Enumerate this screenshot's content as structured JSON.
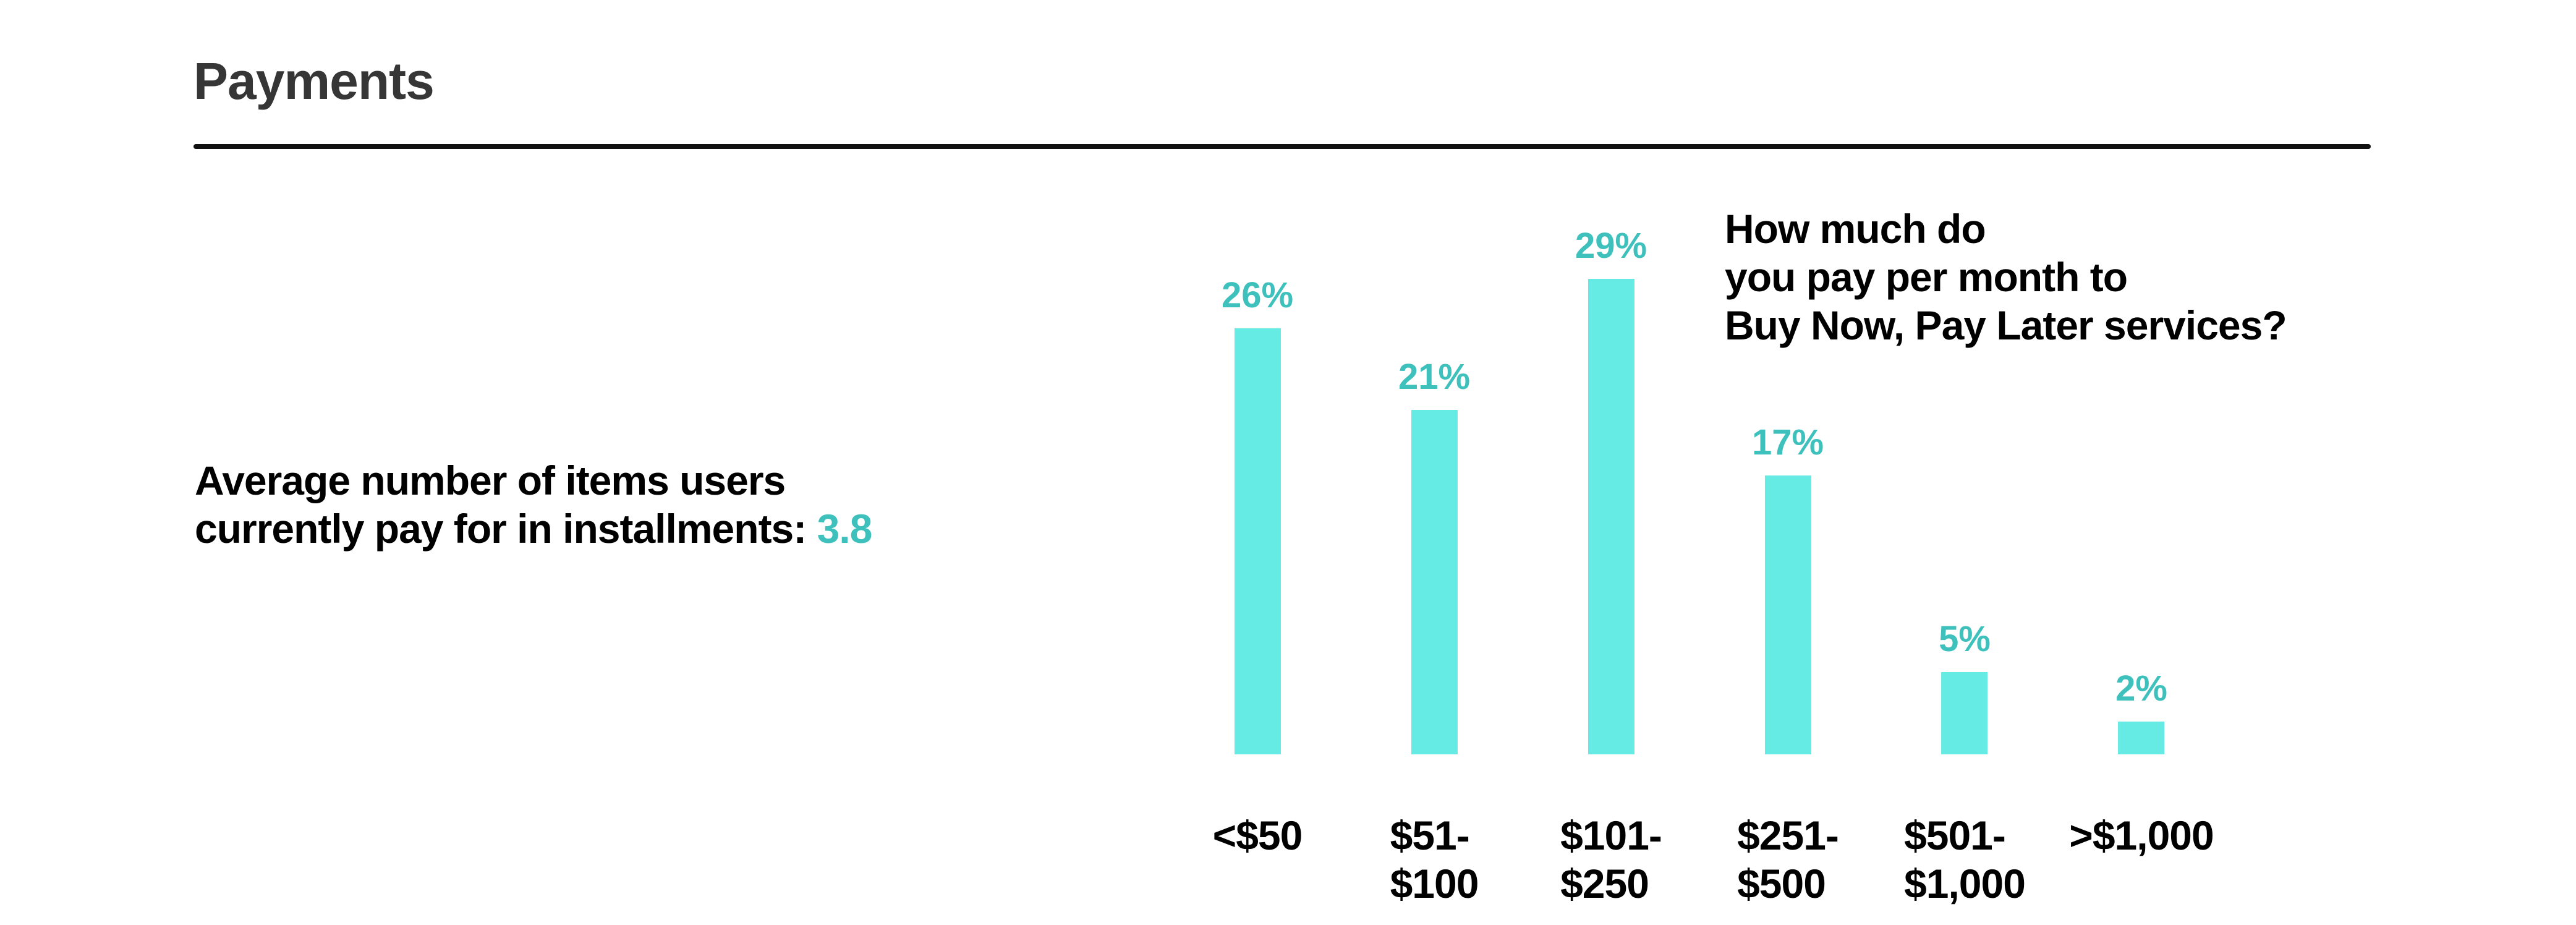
{
  "page": {
    "title": "Payments"
  },
  "stat": {
    "line1": "Average number of items users",
    "line2_prefix": "currently pay for in installments: ",
    "value": "3.8"
  },
  "chart_data": {
    "type": "bar",
    "title": "How much do you pay per month to Buy Now, Pay Later services?",
    "title_lines": [
      "How much do",
      "you pay per month to",
      "Buy Now, Pay Later services?"
    ],
    "categories": [
      "<$50",
      "$51-\n$100",
      "$101-\n$250",
      "$251-\n$500",
      "$501-\n$1,000",
      ">$1,000"
    ],
    "values": [
      26,
      21,
      29,
      17,
      5,
      2
    ],
    "value_labels": [
      "26%",
      "21%",
      "29%",
      "17%",
      "5%",
      "2%"
    ],
    "unit": "percent",
    "ylim": [
      0,
      30
    ],
    "grid": false,
    "legend": false,
    "bar_orientation": "vertical"
  },
  "colors": {
    "bar_fill": "#65EBE3",
    "accent_teal": "#3EC1BC",
    "heading": "#363636",
    "text": "#000000",
    "rule": "#111111",
    "background": "#FFFFFF"
  }
}
